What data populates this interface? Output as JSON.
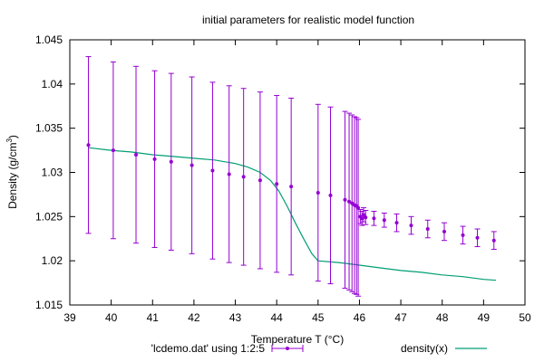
{
  "chart_data": {
    "type": "scatter",
    "title": "initial parameters for realistic model function",
    "xlabel": "Temperature T (°C)",
    "ylabel_main": "Density (g/cm",
    "ylabel_sup": "3",
    "ylabel_close": ")",
    "xlim": [
      39,
      50
    ],
    "ylim": [
      1.015,
      1.045
    ],
    "x_ticks": [
      39,
      40,
      41,
      42,
      43,
      44,
      45,
      46,
      47,
      48,
      49,
      50
    ],
    "x_tick_labels": [
      "39",
      "40",
      "41",
      "42",
      "43",
      "44",
      "45",
      "46",
      "47",
      "48",
      "49",
      "50"
    ],
    "y_ticks": [
      1.015,
      1.02,
      1.025,
      1.03,
      1.035,
      1.04,
      1.045
    ],
    "y_tick_labels": [
      "1.015",
      "1.02",
      "1.025",
      "1.03",
      "1.035",
      "1.04",
      "1.045"
    ],
    "grid": false,
    "legend_position": "bottom",
    "series": [
      {
        "name": "'lcdemo.dat' using 1:2:5",
        "kind": "points_errorbars",
        "color": "#9400d3",
        "points": [
          {
            "x": 39.45,
            "y": 1.0331,
            "err": 0.01
          },
          {
            "x": 40.05,
            "y": 1.0325,
            "err": 0.01
          },
          {
            "x": 40.6,
            "y": 1.032,
            "err": 0.01
          },
          {
            "x": 41.05,
            "y": 1.0315,
            "err": 0.01
          },
          {
            "x": 41.45,
            "y": 1.0312,
            "err": 0.01
          },
          {
            "x": 41.95,
            "y": 1.0308,
            "err": 0.01
          },
          {
            "x": 42.45,
            "y": 1.0302,
            "err": 0.01
          },
          {
            "x": 42.85,
            "y": 1.0298,
            "err": 0.01
          },
          {
            "x": 43.2,
            "y": 1.0295,
            "err": 0.01
          },
          {
            "x": 43.6,
            "y": 1.0291,
            "err": 0.01
          },
          {
            "x": 44.0,
            "y": 1.0287,
            "err": 0.01
          },
          {
            "x": 44.35,
            "y": 1.0284,
            "err": 0.01
          },
          {
            "x": 45.0,
            "y": 1.0277,
            "err": 0.01
          },
          {
            "x": 45.3,
            "y": 1.0274,
            "err": 0.01
          },
          {
            "x": 45.65,
            "y": 1.0269,
            "err": 0.01
          },
          {
            "x": 45.75,
            "y": 1.0267,
            "err": 0.01
          },
          {
            "x": 45.82,
            "y": 1.0265,
            "err": 0.01
          },
          {
            "x": 45.88,
            "y": 1.0263,
            "err": 0.01
          },
          {
            "x": 45.93,
            "y": 1.0262,
            "err": 0.01
          },
          {
            "x": 45.97,
            "y": 1.026,
            "err": 0.01
          },
          {
            "x": 46.02,
            "y": 1.025,
            "err": 0.0008
          },
          {
            "x": 46.06,
            "y": 1.0248,
            "err": 0.0008
          },
          {
            "x": 46.1,
            "y": 1.0252,
            "err": 0.0008
          },
          {
            "x": 46.15,
            "y": 1.0249,
            "err": 0.0008
          },
          {
            "x": 46.35,
            "y": 1.0248,
            "err": 0.0008
          },
          {
            "x": 46.6,
            "y": 1.0246,
            "err": 0.0008
          },
          {
            "x": 46.9,
            "y": 1.0243,
            "err": 0.001
          },
          {
            "x": 47.25,
            "y": 1.024,
            "err": 0.001
          },
          {
            "x": 47.65,
            "y": 1.0236,
            "err": 0.001
          },
          {
            "x": 48.05,
            "y": 1.0233,
            "err": 0.001
          },
          {
            "x": 48.5,
            "y": 1.0229,
            "err": 0.001
          },
          {
            "x": 48.85,
            "y": 1.0226,
            "err": 0.001
          },
          {
            "x": 49.25,
            "y": 1.0223,
            "err": 0.001
          }
        ]
      },
      {
        "name": "density(x)",
        "kind": "line",
        "color": "#009e73",
        "x": [
          39.45,
          40.0,
          40.5,
          41.0,
          41.5,
          42.0,
          42.5,
          43.0,
          43.3,
          43.6,
          43.85,
          44.05,
          44.25,
          44.45,
          44.65,
          44.85,
          45.0,
          45.5,
          46.0,
          46.5,
          47.0,
          47.5,
          48.0,
          48.5,
          49.0,
          49.3
        ],
        "y": [
          1.0328,
          1.0325,
          1.0323,
          1.032,
          1.0318,
          1.0316,
          1.0314,
          1.031,
          1.0306,
          1.03,
          1.0291,
          1.0279,
          1.0262,
          1.0243,
          1.0225,
          1.0208,
          1.02,
          1.0198,
          1.0195,
          1.0192,
          1.0189,
          1.0187,
          1.0184,
          1.0182,
          1.0179,
          1.0178
        ]
      }
    ]
  }
}
